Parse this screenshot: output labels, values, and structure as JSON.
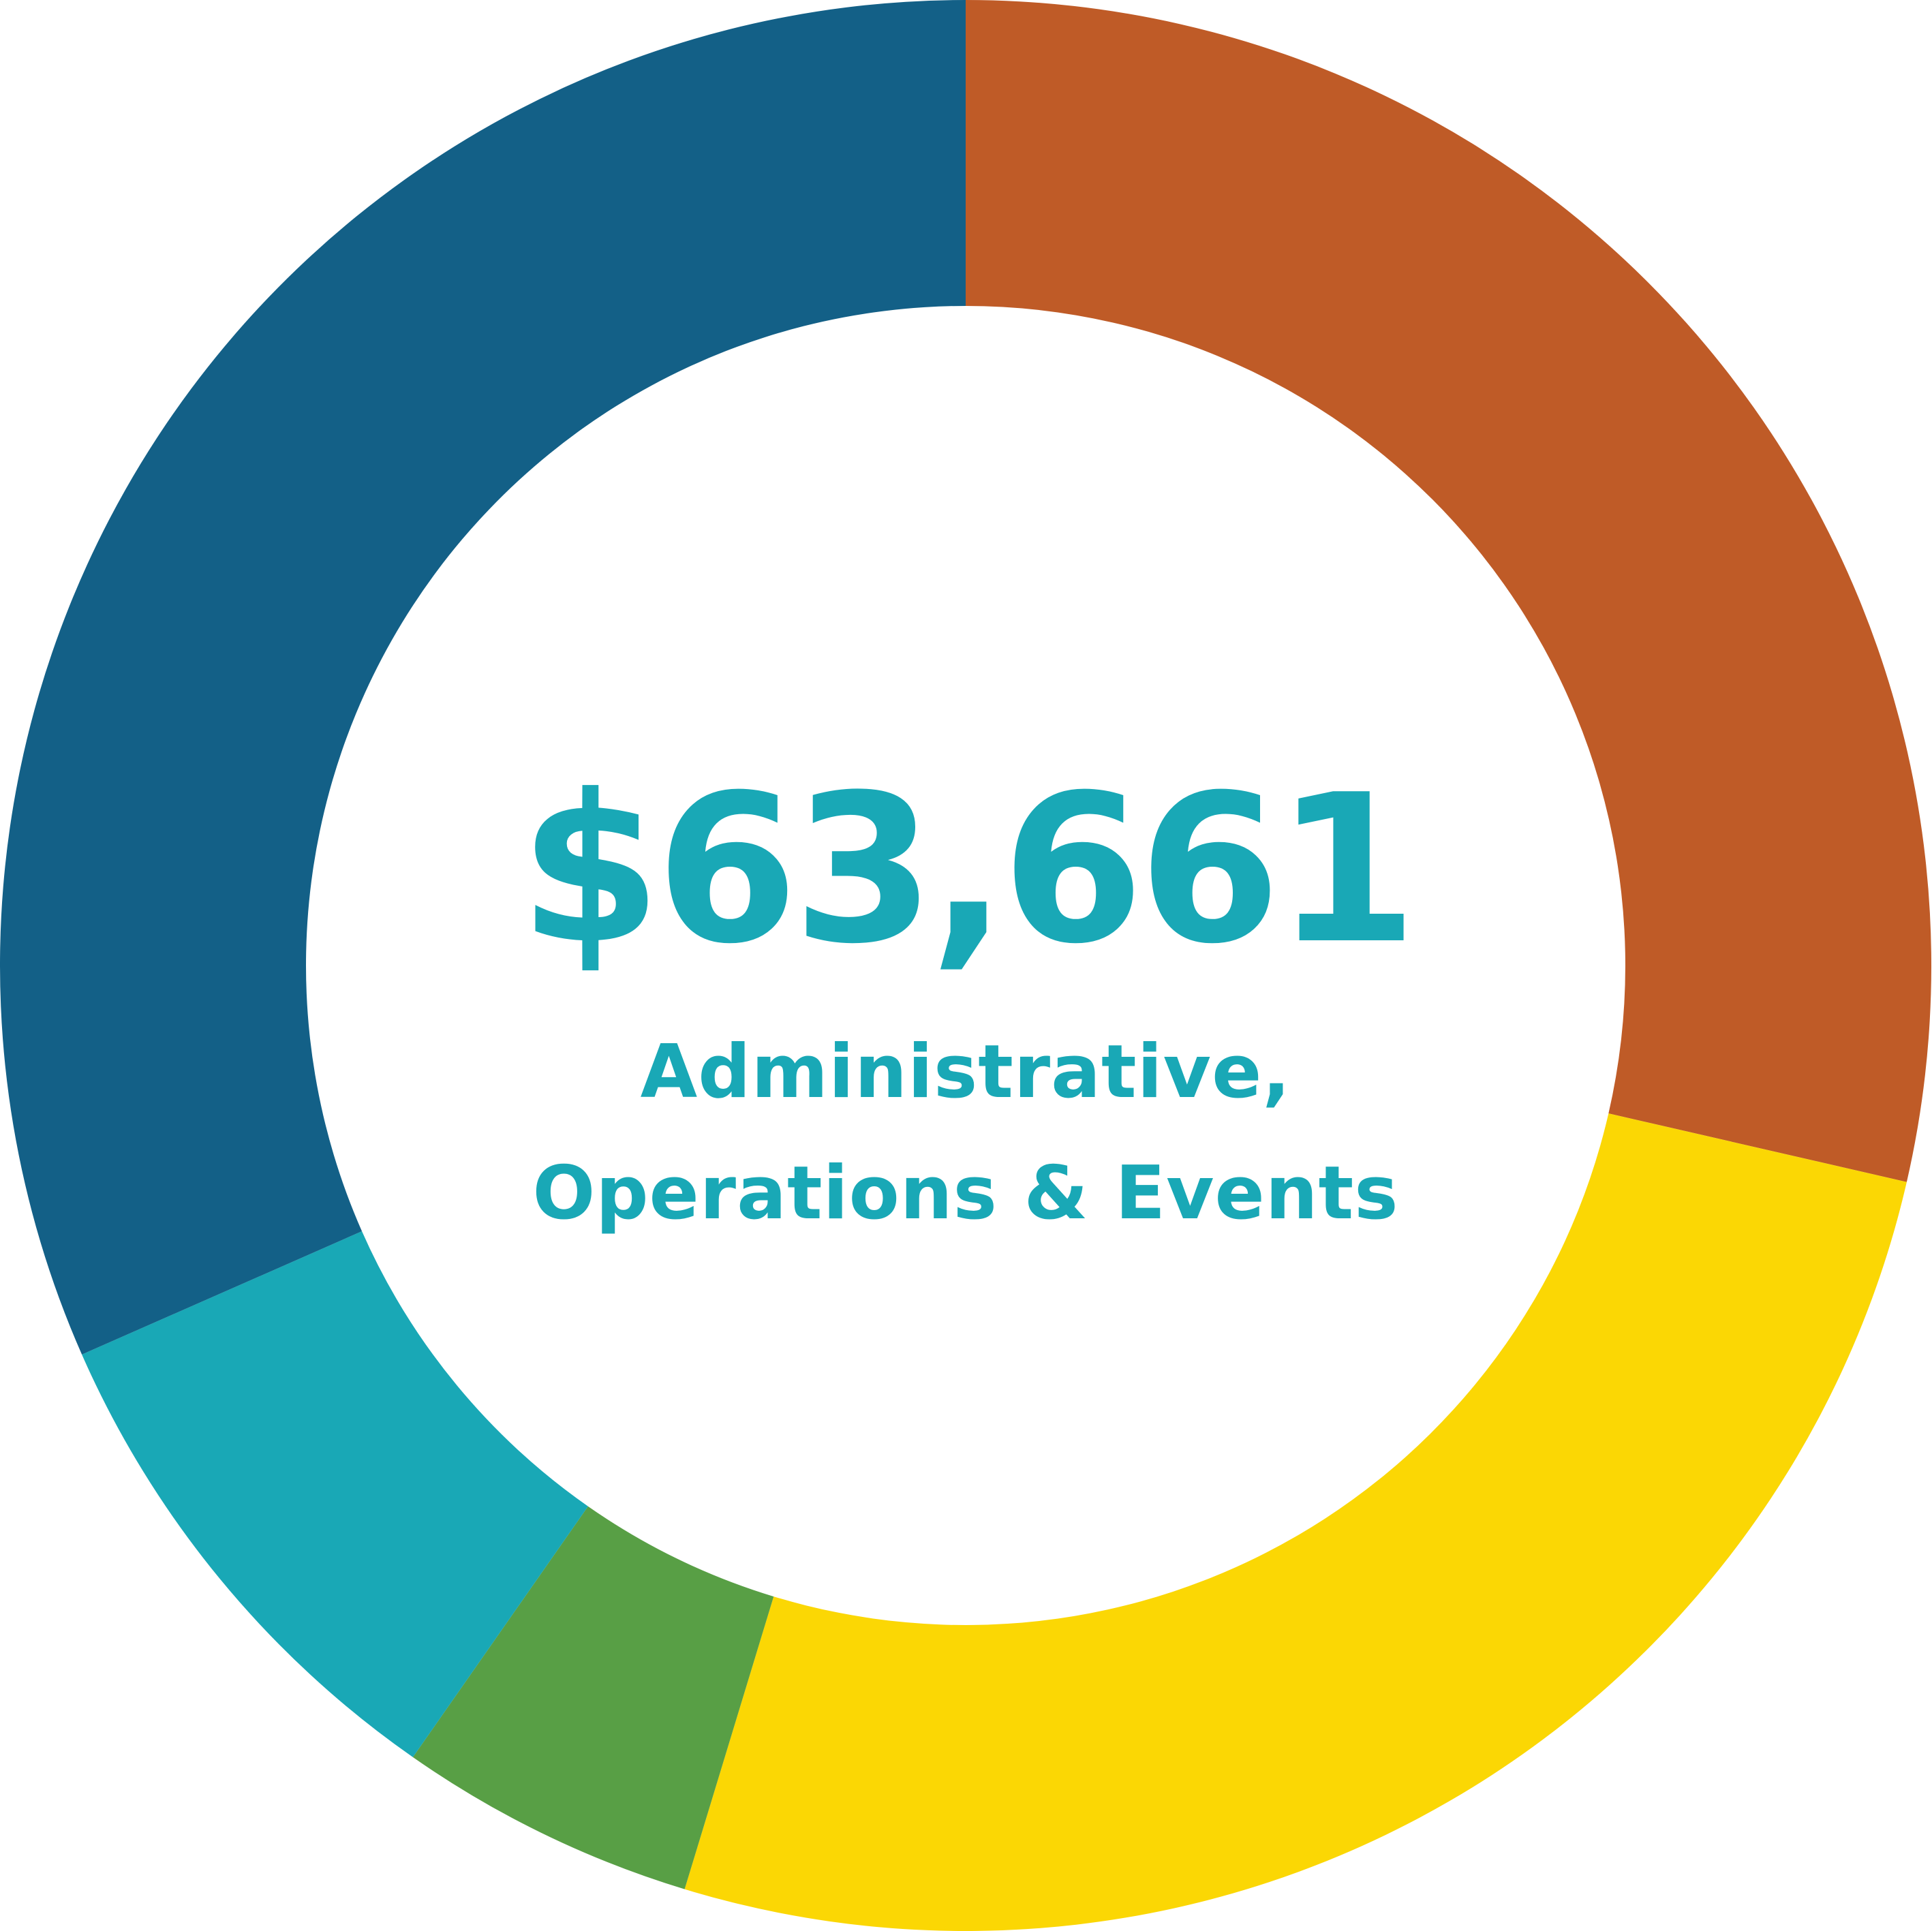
{
  "chart_data": {
    "type": "pie",
    "variant": "donut",
    "slices": [
      {
        "value": 28.6,
        "color": "#BF5B27"
      },
      {
        "value": 26.1,
        "color": "#FBD704"
      },
      {
        "value": 5.0,
        "color": "#589F45"
      },
      {
        "value": 8.7,
        "color": "#19A8B6"
      },
      {
        "value": 31.6,
        "color": "#136087"
      }
    ],
    "center_value": "$63,661",
    "center_label_lines": [
      "Administrative,",
      "Operations & Events"
    ],
    "center_text_color": "#19A8B6"
  }
}
